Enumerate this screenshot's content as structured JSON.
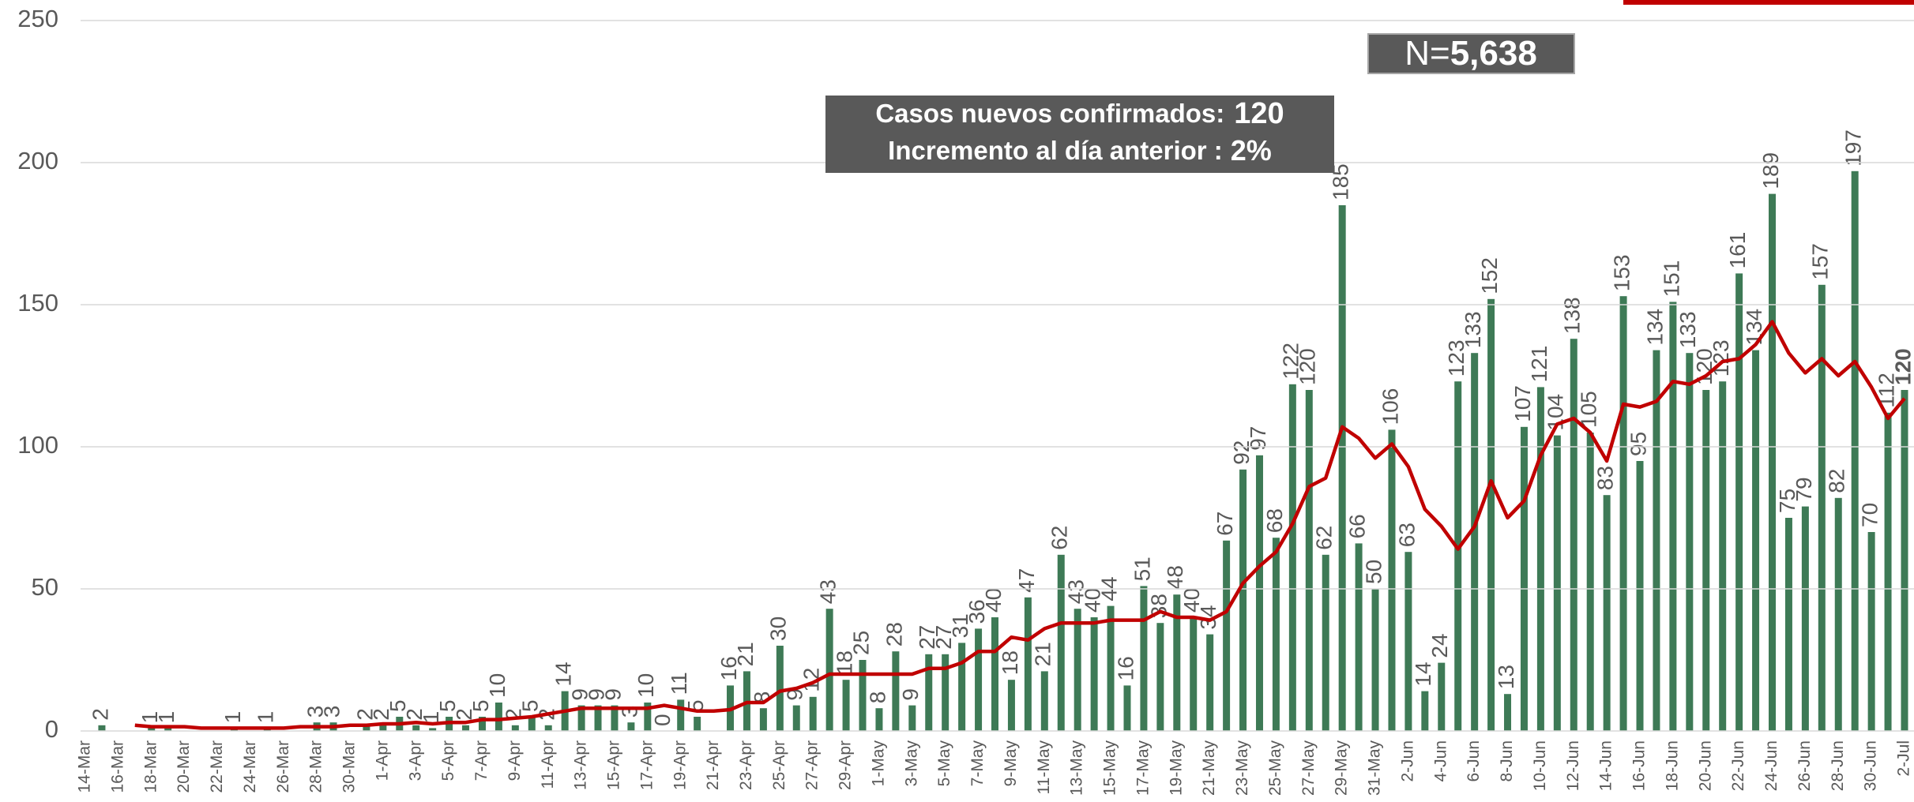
{
  "chart_data": {
    "type": "bar",
    "categories": [
      "14-Mar",
      null,
      "16-Mar",
      null,
      "18-Mar",
      null,
      "20-Mar",
      null,
      "22-Mar",
      null,
      "24-Mar",
      null,
      "26-Mar",
      null,
      "28-Mar",
      null,
      "30-Mar",
      null,
      "1-Apr",
      null,
      "3-Apr",
      null,
      "5-Apr",
      null,
      "7-Apr",
      null,
      "9-Apr",
      null,
      "11-Apr",
      null,
      "13-Apr",
      null,
      "15-Apr",
      null,
      "17-Apr",
      null,
      "19-Apr",
      null,
      "21-Apr",
      null,
      "23-Apr",
      null,
      "25-Apr",
      null,
      "27-Apr",
      null,
      "29-Apr",
      null,
      "1-May",
      null,
      "3-May",
      null,
      "5-May",
      null,
      "7-May",
      null,
      "9-May",
      null,
      "11-May",
      null,
      "13-May",
      null,
      "15-May",
      null,
      "17-May",
      null,
      "19-May",
      null,
      "21-May",
      null,
      "23-May",
      null,
      "25-May",
      null,
      "27-May",
      null,
      "29-May",
      null,
      "31-May",
      null,
      "2-Jun",
      null,
      "4-Jun",
      null,
      "6-Jun",
      null,
      "8-Jun",
      null,
      "10-Jun",
      null,
      "12-Jun",
      null,
      "14-Jun",
      null,
      "16-Jun",
      null,
      "18-Jun",
      null,
      "20-Jun",
      null,
      "22-Jun",
      null,
      "24-Jun",
      null,
      "26-Jun",
      null,
      "28-Jun",
      null,
      "30-Jun",
      null,
      "2-Jul"
    ],
    "series": [
      {
        "type": "bar",
        "color": "#3e7a56",
        "values": [
          0,
          2,
          0,
          0,
          1,
          1,
          0,
          0,
          0,
          1,
          0,
          1,
          0,
          0,
          3,
          3,
          0,
          2,
          2,
          5,
          2,
          1,
          5,
          2,
          5,
          10,
          2,
          5,
          2,
          14,
          9,
          9,
          9,
          3,
          10,
          0,
          11,
          5,
          0,
          16,
          21,
          8,
          30,
          9,
          12,
          43,
          18,
          25,
          8,
          28,
          9,
          27,
          27,
          31,
          36,
          40,
          18,
          47,
          21,
          62,
          43,
          40,
          44,
          16,
          51,
          38,
          48,
          40,
          34,
          67,
          92,
          97,
          68,
          122,
          120,
          62,
          185,
          66,
          50,
          106,
          63,
          14,
          24,
          123,
          133,
          152,
          13,
          107,
          121,
          104,
          138,
          105,
          83,
          153,
          95,
          134,
          151,
          133,
          120,
          123,
          161,
          134,
          189,
          75,
          79,
          157,
          82,
          197,
          70,
          112,
          120
        ],
        "value_labels": [
          null,
          "2",
          null,
          null,
          "1",
          "1",
          null,
          null,
          null,
          "1",
          null,
          "1",
          null,
          null,
          "3",
          "3",
          null,
          "2",
          "2",
          "5",
          "2",
          "1",
          "5",
          "2",
          "5",
          "10",
          "2",
          "5",
          "2",
          "14",
          "9",
          "9",
          "9",
          "3",
          "10",
          "0",
          "11",
          "5",
          null,
          "16",
          "21",
          "8",
          "30",
          "9",
          "12",
          "43",
          "18",
          "25",
          "8",
          "28",
          "9",
          "27",
          "27",
          "31",
          "36",
          "40",
          "18",
          "47",
          "21",
          "62",
          "43",
          "40",
          "44",
          "16",
          "51",
          "38",
          "48",
          "40",
          "34",
          "67",
          "92",
          "97",
          "68",
          "122",
          "120",
          "62",
          "185",
          "66",
          "50",
          "106",
          "63",
          "14",
          "24",
          "123",
          "133",
          "152",
          "13",
          "107",
          "121",
          "104",
          "138",
          "105",
          "83",
          "153",
          "95",
          "134",
          "151",
          "133",
          "120",
          "123",
          "161",
          "134",
          "189",
          "75",
          "79",
          "157",
          "82",
          "197",
          "70",
          "112",
          "120"
        ]
      },
      {
        "type": "line",
        "color": "#c00000",
        "values": [
          null,
          null,
          null,
          2,
          1.5,
          1.5,
          1.5,
          1,
          1,
          1,
          1,
          1,
          1,
          1.5,
          1.5,
          1.5,
          2,
          2,
          2.5,
          2.5,
          3,
          2.5,
          3,
          3,
          4,
          4,
          4.5,
          5,
          6,
          7,
          8,
          8,
          8,
          8,
          8,
          9,
          8,
          7,
          7,
          7.5,
          10,
          10,
          14,
          15,
          17,
          20,
          20,
          20,
          20,
          20,
          20,
          22,
          22,
          24,
          28,
          28,
          33,
          32,
          36,
          38,
          38,
          38,
          39,
          39,
          39,
          42,
          40,
          40,
          39,
          42,
          52,
          58,
          63,
          73,
          86,
          89,
          107,
          103,
          96,
          101,
          93,
          78,
          72,
          64,
          72,
          88,
          75,
          81,
          97,
          108,
          110,
          105,
          95,
          115,
          114,
          116,
          123,
          122,
          125,
          130,
          131,
          136,
          144,
          133,
          126,
          131,
          125,
          130,
          121,
          110,
          117
        ]
      }
    ],
    "ylim": [
      0,
      250
    ],
    "yticks": [
      0,
      50,
      100,
      150,
      200,
      250
    ],
    "grid": true,
    "annotations": [
      {
        "text": "Casos nuevos confirmados:",
        "value": "120"
      },
      {
        "text": "Incremento al día anterior :",
        "value": "2%"
      },
      {
        "text": "N=",
        "value": "5,638"
      }
    ],
    "accent_color": "#c00000"
  }
}
